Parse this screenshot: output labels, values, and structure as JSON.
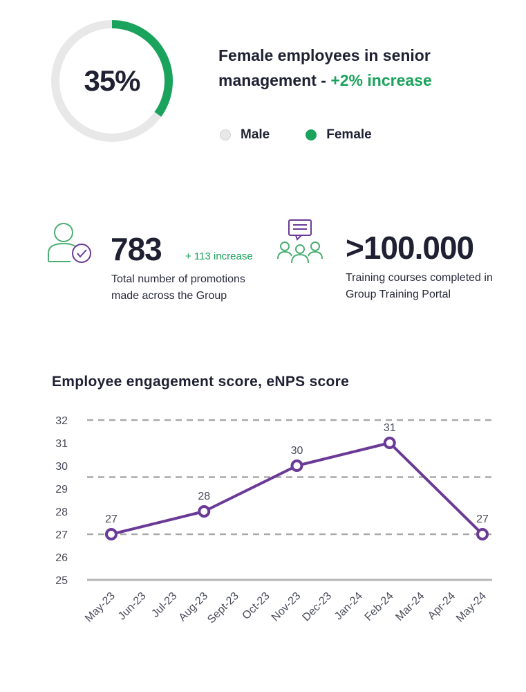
{
  "summary": {
    "percentage": "35%",
    "headline_text": "Female employees in senior management - ",
    "headline_accent": "+2% increase",
    "female_fraction": 0.35,
    "legend": [
      {
        "label": "Male",
        "color": "#e8e8e8"
      },
      {
        "label": "Female",
        "color": "#1aa35c"
      }
    ]
  },
  "stats": [
    {
      "icon": "person-check-icon",
      "value": "783",
      "delta": "+ 113 increase",
      "description_lines": [
        "Total number of promotions",
        "made across  the Group"
      ]
    },
    {
      "icon": "group-chat-icon",
      "value": ">100.000",
      "delta": "",
      "description_lines": [
        "Training courses completed in",
        "Group Training Portal"
      ]
    }
  ],
  "colors": {
    "accent_green": "#1aa35c",
    "line_purple": "#6a3a96",
    "ring_gray": "#e8e8e8"
  },
  "chart_data": {
    "type": "line",
    "title": "Employee engagement score, eNPS score",
    "categories": [
      "May-23",
      "Jun-23",
      "Jul-23",
      "Aug-23",
      "Sept-23",
      "Oct-23",
      "Nov-23",
      "Dec-23",
      "Jan-24",
      "Feb-24",
      "Mar-24",
      "Apr-24",
      "May-24"
    ],
    "points": [
      {
        "x": "May-23",
        "y": 27
      },
      {
        "x": "Aug-23",
        "y": 28
      },
      {
        "x": "Nov-23",
        "y": 30
      },
      {
        "x": "Feb-24",
        "y": 31
      },
      {
        "x": "May-24",
        "y": 27
      }
    ],
    "yticks": [
      32,
      31,
      30,
      29,
      28,
      27,
      26,
      25
    ],
    "ylim": [
      25,
      32
    ],
    "gridlines": [
      27,
      29.5,
      32
    ]
  }
}
